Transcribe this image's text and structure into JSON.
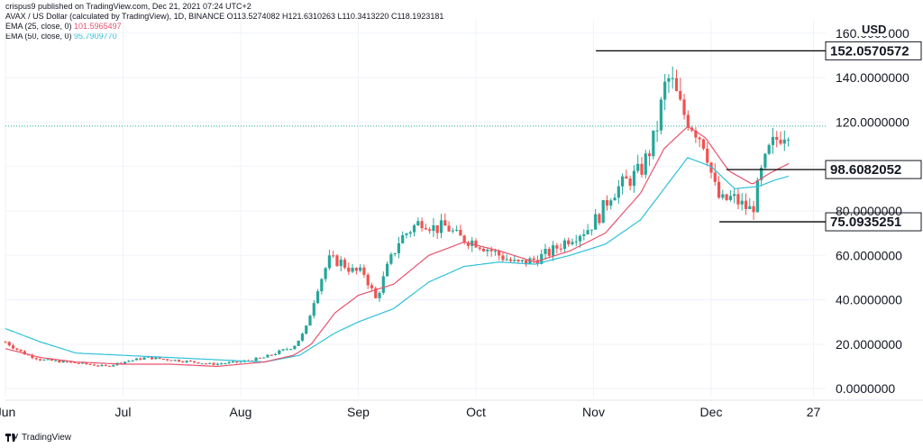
{
  "header": {
    "publisher": "crispus9 published on TradingView.com, Dec 21, 2021 07:24 UTC+2",
    "symbol": "AVAX / US Dollar (calculated by TradingView), 1D, BINANCE",
    "ohlc": "O113.5274082  H121.6310263  L110.3413220  C118.1923181",
    "ema25_label": "EMA (25, close, 0)",
    "ema25_value": "101.5965497",
    "ema50_label": "EMA (50, close, 0)",
    "ema50_value": "95.7909770"
  },
  "currency": "USD",
  "footer": {
    "brand": "TradingView"
  },
  "colors": {
    "up": "#26a69a",
    "down": "#ef5350",
    "ema25": "#e8536e",
    "ema50": "#2fc1da",
    "grid": "#f0f3fa",
    "last_price_line": "#26a69a"
  },
  "chart_data": {
    "type": "candlestick",
    "ylim": [
      -3.6,
      166
    ],
    "y_ticks": [
      "160.0000000",
      "140.0000000",
      "120.0000000",
      "100.0000000",
      "80.0000000",
      "60.0000000",
      "40.0000000",
      "20.0000000",
      "0.0000000"
    ],
    "y_tick_values": [
      160,
      140,
      120,
      100,
      80,
      60,
      40,
      20,
      0
    ],
    "x_ticks": [
      "Jun",
      "Jul",
      "Aug",
      "Sep",
      "Oct",
      "Nov",
      "Dec",
      "27"
    ],
    "x_tick_months": [
      5,
      6,
      7,
      8,
      9,
      10,
      11,
      11.87
    ],
    "start_month": 5.0,
    "end_month": 11.67,
    "last_price": 118.19,
    "levels": [
      {
        "label": "152.0570572",
        "value": 152.057,
        "x_from_month": 10.02
      },
      {
        "label": "98.6082052",
        "value": 98.608,
        "x_from_month": 11.13
      },
      {
        "label": "75.0935251",
        "value": 75.094,
        "x_from_month": 11.07
      }
    ],
    "close_anchors": [
      [
        5.0,
        21
      ],
      [
        5.15,
        16
      ],
      [
        5.3,
        13
      ],
      [
        5.5,
        12
      ],
      [
        5.7,
        11
      ],
      [
        5.85,
        10
      ],
      [
        6.0,
        12
      ],
      [
        6.2,
        14
      ],
      [
        6.4,
        13
      ],
      [
        6.6,
        12
      ],
      [
        6.75,
        11
      ],
      [
        7.0,
        12
      ],
      [
        7.2,
        14
      ],
      [
        7.45,
        19
      ],
      [
        7.55,
        26
      ],
      [
        7.65,
        45
      ],
      [
        7.75,
        58
      ],
      [
        7.85,
        57
      ],
      [
        7.95,
        53
      ],
      [
        8.05,
        52
      ],
      [
        8.15,
        40
      ],
      [
        8.25,
        55
      ],
      [
        8.35,
        67
      ],
      [
        8.45,
        72
      ],
      [
        8.55,
        76
      ],
      [
        8.65,
        72
      ],
      [
        8.75,
        73
      ],
      [
        8.85,
        68
      ],
      [
        9.0,
        66
      ],
      [
        9.1,
        63
      ],
      [
        9.2,
        60
      ],
      [
        9.35,
        56
      ],
      [
        9.5,
        58
      ],
      [
        9.65,
        62
      ],
      [
        9.8,
        68
      ],
      [
        9.95,
        72
      ],
      [
        10.05,
        78
      ],
      [
        10.15,
        88
      ],
      [
        10.25,
        92
      ],
      [
        10.4,
        98
      ],
      [
        10.5,
        110
      ],
      [
        10.55,
        120
      ],
      [
        10.6,
        135
      ],
      [
        10.65,
        140
      ],
      [
        10.75,
        125
      ],
      [
        10.85,
        118
      ],
      [
        10.95,
        110
      ],
      [
        11.02,
        92
      ],
      [
        11.08,
        84
      ],
      [
        11.18,
        86
      ],
      [
        11.28,
        82
      ],
      [
        11.35,
        80
      ],
      [
        11.42,
        96
      ],
      [
        11.5,
        108
      ],
      [
        11.58,
        114
      ],
      [
        11.67,
        118
      ]
    ],
    "ema25_anchors": [
      [
        5.0,
        18
      ],
      [
        5.3,
        14
      ],
      [
        5.6,
        12
      ],
      [
        6.0,
        11
      ],
      [
        6.4,
        11
      ],
      [
        6.8,
        10
      ],
      [
        7.2,
        12
      ],
      [
        7.45,
        15
      ],
      [
        7.6,
        20
      ],
      [
        7.8,
        34
      ],
      [
        8.0,
        42
      ],
      [
        8.3,
        47
      ],
      [
        8.6,
        60
      ],
      [
        8.9,
        66
      ],
      [
        9.2,
        62
      ],
      [
        9.5,
        57
      ],
      [
        9.8,
        62
      ],
      [
        10.1,
        70
      ],
      [
        10.4,
        88
      ],
      [
        10.6,
        108
      ],
      [
        10.8,
        118
      ],
      [
        10.95,
        113
      ],
      [
        11.15,
        98
      ],
      [
        11.35,
        92
      ],
      [
        11.5,
        97
      ],
      [
        11.67,
        101.6
      ]
    ],
    "ema50_anchors": [
      [
        5.0,
        27
      ],
      [
        5.3,
        21
      ],
      [
        5.6,
        16
      ],
      [
        6.0,
        15
      ],
      [
        6.4,
        14
      ],
      [
        6.8,
        13
      ],
      [
        7.2,
        12
      ],
      [
        7.5,
        15
      ],
      [
        7.8,
        25
      ],
      [
        8.0,
        30
      ],
      [
        8.3,
        36
      ],
      [
        8.6,
        48
      ],
      [
        8.9,
        55
      ],
      [
        9.2,
        57
      ],
      [
        9.5,
        56
      ],
      [
        9.8,
        60
      ],
      [
        10.1,
        65
      ],
      [
        10.4,
        76
      ],
      [
        10.6,
        90
      ],
      [
        10.8,
        104
      ],
      [
        11.0,
        100
      ],
      [
        11.2,
        90
      ],
      [
        11.4,
        91
      ],
      [
        11.55,
        94
      ],
      [
        11.67,
        95.79
      ]
    ]
  }
}
